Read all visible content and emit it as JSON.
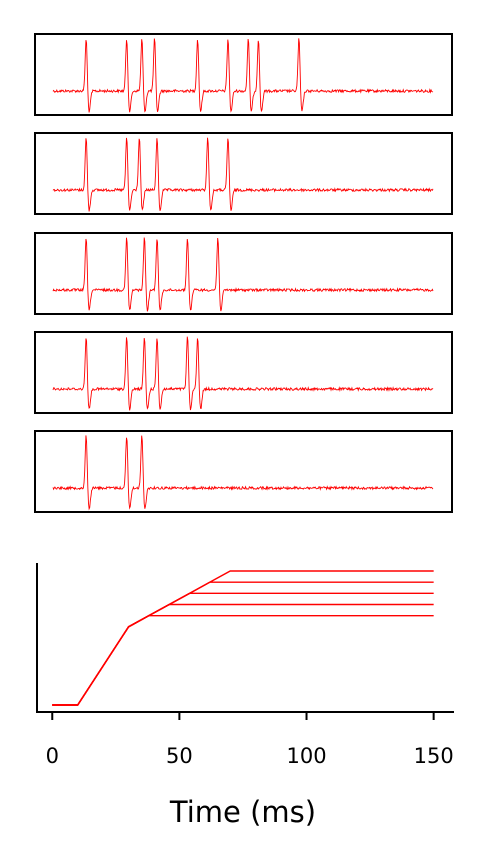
{
  "chart_data": [
    {
      "type": "line",
      "panel": "spike-trace",
      "x_range": [
        0,
        150
      ],
      "spike_times": [
        13,
        29,
        35,
        40,
        57,
        69,
        77,
        81,
        97
      ],
      "color": "#ff0000",
      "axes_visible": false
    },
    {
      "type": "line",
      "panel": "spike-trace",
      "x_range": [
        0,
        150
      ],
      "spike_times": [
        13,
        29,
        34,
        41,
        61,
        69
      ],
      "color": "#ff0000",
      "axes_visible": false
    },
    {
      "type": "line",
      "panel": "spike-trace",
      "x_range": [
        0,
        150
      ],
      "spike_times": [
        13,
        29,
        36,
        41,
        53,
        65
      ],
      "color": "#ff0000",
      "axes_visible": false
    },
    {
      "type": "line",
      "panel": "spike-trace",
      "x_range": [
        0,
        150
      ],
      "spike_times": [
        13,
        29,
        36,
        41,
        53,
        57
      ],
      "color": "#ff0000",
      "axes_visible": false
    },
    {
      "type": "line",
      "panel": "spike-trace",
      "x_range": [
        0,
        150
      ],
      "spike_times": [
        13,
        29,
        35
      ],
      "color": "#ff0000",
      "axes_visible": false
    },
    {
      "type": "line",
      "panel": "stimulus",
      "xlabel": "Time (ms)",
      "x_ticks": [
        0,
        50,
        100,
        150
      ],
      "xlim": [
        -6,
        158
      ],
      "ylim": [
        -0.3,
        6.4
      ],
      "color": "#ff0000",
      "series": [
        {
          "x": [
            0,
            10,
            30,
            38,
            150
          ],
          "y": [
            0,
            0,
            3.5,
            4.0,
            4.0
          ]
        },
        {
          "x": [
            0,
            10,
            30,
            38,
            46,
            150
          ],
          "y": [
            0,
            0,
            3.5,
            4.0,
            4.5,
            4.5
          ]
        },
        {
          "x": [
            0,
            10,
            30,
            38,
            46,
            54,
            150
          ],
          "y": [
            0,
            0,
            3.5,
            4.0,
            4.5,
            5.0,
            5.0
          ]
        },
        {
          "x": [
            0,
            10,
            30,
            38,
            46,
            54,
            62,
            150
          ],
          "y": [
            0,
            0,
            3.5,
            4.0,
            4.5,
            5.0,
            5.5,
            5.5
          ]
        },
        {
          "x": [
            0,
            10,
            30,
            38,
            46,
            54,
            62,
            70,
            150
          ],
          "y": [
            0,
            0,
            3.5,
            4.0,
            4.5,
            5.0,
            5.5,
            6.0,
            6.0
          ]
        }
      ]
    }
  ]
}
